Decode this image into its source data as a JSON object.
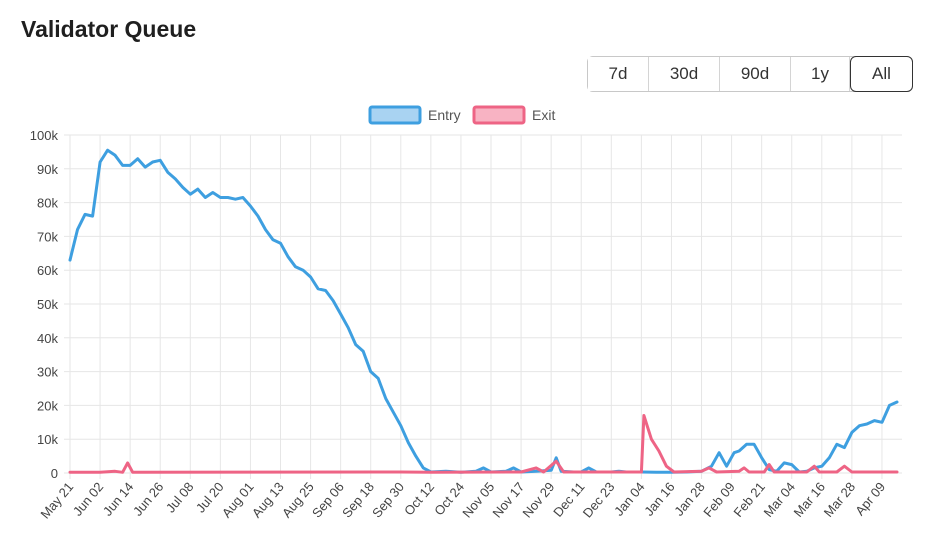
{
  "title": "Validator Queue",
  "range_buttons": [
    {
      "label": "7d",
      "active": false
    },
    {
      "label": "30d",
      "active": false
    },
    {
      "label": "90d",
      "active": false
    },
    {
      "label": "1y",
      "active": false
    },
    {
      "label": "All",
      "active": true
    }
  ],
  "colors": {
    "entry": "#3e9fe0",
    "entry_fill": "#a9d3f2",
    "exit": "#ee6485",
    "exit_fill": "#f8b3c3",
    "grid": "#e6e6e6"
  },
  "chart_data": {
    "type": "line",
    "title": "",
    "xlabel": "",
    "ylabel": "",
    "ylim": [
      0,
      100000
    ],
    "yticks": [
      "0",
      "10k",
      "20k",
      "30k",
      "40k",
      "50k",
      "60k",
      "70k",
      "80k",
      "90k",
      "100k"
    ],
    "x_range": [
      "May 21",
      "Apr 17"
    ],
    "categories": [
      "May 21",
      "Jun 02",
      "Jun 14",
      "Jun 26",
      "Jul 08",
      "Jul 20",
      "Aug 01",
      "Aug 13",
      "Aug 25",
      "Sep 06",
      "Sep 18",
      "Sep 30",
      "Oct 12",
      "Oct 24",
      "Nov 05",
      "Nov 17",
      "Nov 29",
      "Dec 11",
      "Dec 23",
      "Jan 04",
      "Jan 16",
      "Jan 28",
      "Feb 09",
      "Feb 21",
      "Mar 04",
      "Mar 16",
      "Mar 28",
      "Apr 09"
    ],
    "legend_position": "top-center",
    "grid": true,
    "series": [
      {
        "name": "Entry",
        "points": [
          [
            "May 21",
            63000
          ],
          [
            "May 24",
            72000
          ],
          [
            "May 27",
            76500
          ],
          [
            "May 30",
            76000
          ],
          [
            "Jun 02",
            92000
          ],
          [
            "Jun 05",
            95500
          ],
          [
            "Jun 08",
            94000
          ],
          [
            "Jun 11",
            91000
          ],
          [
            "Jun 14",
            91000
          ],
          [
            "Jun 17",
            93000
          ],
          [
            "Jun 20",
            90500
          ],
          [
            "Jun 23",
            92000
          ],
          [
            "Jun 26",
            92500
          ],
          [
            "Jun 29",
            89000
          ],
          [
            "Jul 02",
            87000
          ],
          [
            "Jul 05",
            84500
          ],
          [
            "Jul 08",
            82500
          ],
          [
            "Jul 11",
            84000
          ],
          [
            "Jul 14",
            81500
          ],
          [
            "Jul 17",
            83000
          ],
          [
            "Jul 20",
            81500
          ],
          [
            "Jul 23",
            81500
          ],
          [
            "Jul 26",
            81000
          ],
          [
            "Jul 29",
            81500
          ],
          [
            "Aug 01",
            79000
          ],
          [
            "Aug 04",
            76000
          ],
          [
            "Aug 07",
            72000
          ],
          [
            "Aug 10",
            69000
          ],
          [
            "Aug 13",
            68000
          ],
          [
            "Aug 16",
            64000
          ],
          [
            "Aug 19",
            61000
          ],
          [
            "Aug 22",
            60000
          ],
          [
            "Aug 25",
            58000
          ],
          [
            "Aug 28",
            54500
          ],
          [
            "Aug 31",
            54000
          ],
          [
            "Sep 03",
            51000
          ],
          [
            "Sep 06",
            47000
          ],
          [
            "Sep 09",
            43000
          ],
          [
            "Sep 12",
            38000
          ],
          [
            "Sep 15",
            36000
          ],
          [
            "Sep 18",
            30000
          ],
          [
            "Sep 21",
            28000
          ],
          [
            "Sep 24",
            22000
          ],
          [
            "Sep 27",
            18000
          ],
          [
            "Sep 30",
            14000
          ],
          [
            "Oct 03",
            9000
          ],
          [
            "Oct 06",
            5000
          ],
          [
            "Oct 09",
            1500
          ],
          [
            "Oct 12",
            300
          ],
          [
            "Oct 18",
            500
          ],
          [
            "Oct 24",
            200
          ],
          [
            "Oct 30",
            500
          ],
          [
            "Nov 02",
            1500
          ],
          [
            "Nov 05",
            300
          ],
          [
            "Nov 11",
            500
          ],
          [
            "Nov 14",
            1500
          ],
          [
            "Nov 17",
            300
          ],
          [
            "Nov 23",
            500
          ],
          [
            "Nov 29",
            800
          ],
          [
            "Dec 01",
            4500
          ],
          [
            "Dec 03",
            500
          ],
          [
            "Dec 08",
            300
          ],
          [
            "Dec 11",
            300
          ],
          [
            "Dec 14",
            1500
          ],
          [
            "Dec 17",
            300
          ],
          [
            "Dec 23",
            300
          ],
          [
            "Dec 26",
            500
          ],
          [
            "Dec 29",
            300
          ],
          [
            "Jan 04",
            300
          ],
          [
            "Jan 10",
            200
          ],
          [
            "Jan 16",
            200
          ],
          [
            "Jan 22",
            300
          ],
          [
            "Jan 28",
            500
          ],
          [
            "Feb 01",
            2000
          ],
          [
            "Feb 04",
            6000
          ],
          [
            "Feb 07",
            2000
          ],
          [
            "Feb 10",
            6000
          ],
          [
            "Feb 12",
            6500
          ],
          [
            "Feb 15",
            8500
          ],
          [
            "Feb 18",
            8500
          ],
          [
            "Feb 21",
            4500
          ],
          [
            "Feb 24",
            1000
          ],
          [
            "Feb 27",
            500
          ],
          [
            "Mar 01",
            3000
          ],
          [
            "Mar 04",
            2500
          ],
          [
            "Mar 07",
            300
          ],
          [
            "Mar 10",
            500
          ],
          [
            "Mar 13",
            1500
          ],
          [
            "Mar 16",
            2000
          ],
          [
            "Mar 19",
            4500
          ],
          [
            "Mar 22",
            8500
          ],
          [
            "Mar 25",
            7500
          ],
          [
            "Mar 28",
            12000
          ],
          [
            "Mar 31",
            14000
          ],
          [
            "Apr 03",
            14500
          ],
          [
            "Apr 06",
            15500
          ],
          [
            "Apr 09",
            15000
          ],
          [
            "Apr 12",
            20000
          ],
          [
            "Apr 15",
            21000
          ]
        ]
      },
      {
        "name": "Exit",
        "points": [
          [
            "May 21",
            200
          ],
          [
            "Jun 02",
            200
          ],
          [
            "Jun 08",
            500
          ],
          [
            "Jun 11",
            200
          ],
          [
            "Jun 13",
            3000
          ],
          [
            "Jun 15",
            200
          ],
          [
            "Sep 30",
            300
          ],
          [
            "Oct 12",
            200
          ],
          [
            "Nov 17",
            300
          ],
          [
            "Nov 23",
            1500
          ],
          [
            "Nov 26",
            300
          ],
          [
            "Dec 01",
            3500
          ],
          [
            "Dec 04",
            300
          ],
          [
            "Jan 04",
            300
          ],
          [
            "Jan 05",
            17000
          ],
          [
            "Jan 08",
            10000
          ],
          [
            "Jan 11",
            6500
          ],
          [
            "Jan 14",
            2000
          ],
          [
            "Jan 17",
            300
          ],
          [
            "Jan 28",
            500
          ],
          [
            "Jan 31",
            1500
          ],
          [
            "Feb 03",
            300
          ],
          [
            "Feb 12",
            500
          ],
          [
            "Feb 14",
            1500
          ],
          [
            "Feb 16",
            300
          ],
          [
            "Feb 22",
            300
          ],
          [
            "Feb 24",
            2500
          ],
          [
            "Feb 26",
            300
          ],
          [
            "Mar 10",
            300
          ],
          [
            "Mar 13",
            2000
          ],
          [
            "Mar 15",
            300
          ],
          [
            "Mar 22",
            300
          ],
          [
            "Mar 25",
            2000
          ],
          [
            "Mar 28",
            300
          ],
          [
            "Apr 15",
            300
          ]
        ]
      }
    ]
  }
}
